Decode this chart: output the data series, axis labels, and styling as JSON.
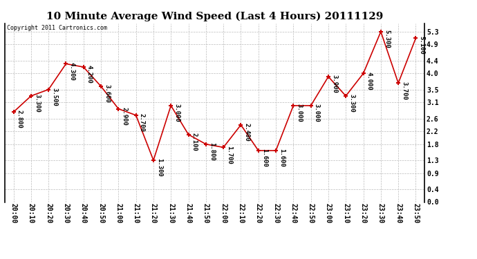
{
  "title": "10 Minute Average Wind Speed (Last 4 Hours) 20111129",
  "copyright": "Copyright 2011 Cartronics.com",
  "times": [
    "20:00",
    "20:10",
    "20:20",
    "20:30",
    "20:40",
    "20:50",
    "21:00",
    "21:10",
    "21:20",
    "21:30",
    "21:40",
    "21:50",
    "22:00",
    "22:10",
    "22:20",
    "22:30",
    "22:40",
    "22:50",
    "23:00",
    "23:10",
    "23:20",
    "23:30",
    "23:40",
    "23:50"
  ],
  "values": [
    2.8,
    3.3,
    3.5,
    4.3,
    4.2,
    3.6,
    2.9,
    2.7,
    1.3,
    3.0,
    2.1,
    1.8,
    1.7,
    2.4,
    1.6,
    1.6,
    3.0,
    3.0,
    3.9,
    3.3,
    4.0,
    5.3,
    3.7,
    5.1
  ],
  "line_color": "#cc0000",
  "marker_color": "#cc0000",
  "bg_color": "#ffffff",
  "grid_color": "#bbbbbb",
  "yticks": [
    0.0,
    0.4,
    0.9,
    1.3,
    1.8,
    2.2,
    2.6,
    3.1,
    3.5,
    4.0,
    4.4,
    4.9,
    5.3
  ],
  "ylim": [
    0.0,
    5.56
  ],
  "title_fontsize": 11,
  "label_fontsize": 7,
  "annot_fontsize": 6.5
}
